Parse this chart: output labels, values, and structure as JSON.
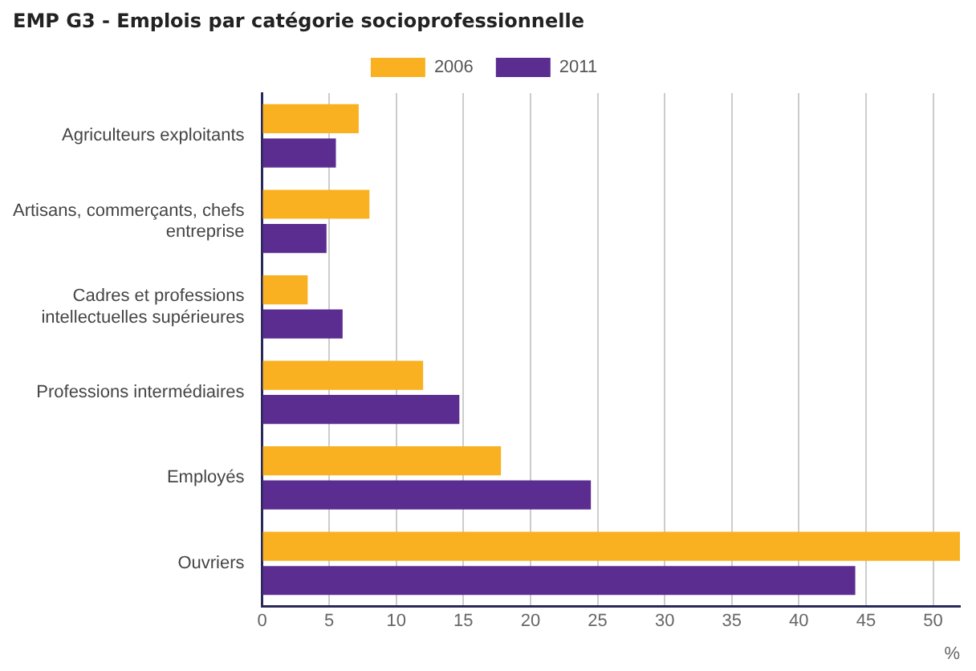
{
  "chart_data": {
    "type": "bar",
    "orientation": "horizontal",
    "title": "EMP G3 - Emplois par catégorie socioprofessionnelle",
    "xlabel": "%",
    "categories": [
      "Agriculteurs exploitants",
      "Artisans, commerçants, chefs entreprise",
      "Cadres et professions intellectuelles supérieures",
      "Professions intermédiaires",
      "Employés",
      "Ouvriers"
    ],
    "series": [
      {
        "name": "2006",
        "color": "#f9b122",
        "values": [
          7.2,
          8.0,
          3.4,
          12.0,
          17.8,
          52.0
        ]
      },
      {
        "name": "2011",
        "color": "#5c2d91",
        "values": [
          5.5,
          4.8,
          6.0,
          14.7,
          24.5,
          44.2
        ]
      }
    ],
    "xlim": [
      0,
      52
    ],
    "xticks": [
      0,
      5,
      10,
      15,
      20,
      25,
      30,
      35,
      40,
      45,
      50
    ],
    "grid": "x",
    "legend": "top"
  }
}
